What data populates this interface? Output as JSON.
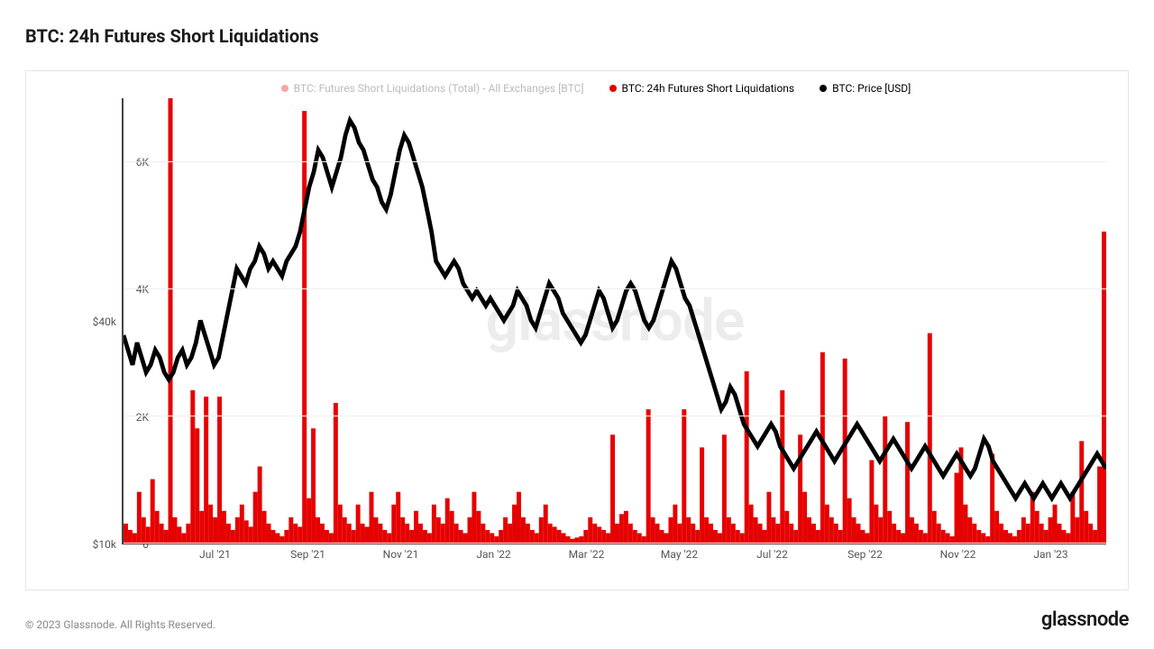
{
  "title": "BTC: 24h Futures Short Liquidations",
  "copyright": "© 2023 Glassnode. All Rights Reserved.",
  "brand": "glassnode",
  "watermark": "glassnode",
  "chart": {
    "type": "dual-axis-bar-line",
    "background_color": "#ffffff",
    "border_color": "#e5e5e5",
    "grid_color": "#eeeeee",
    "axis_color": "#444444",
    "text_color": "#555555",
    "title_fontsize": 20,
    "tick_fontsize": 12,
    "legend_fontsize": 12,
    "legend": [
      {
        "label": "BTC: Futures Short Liquidations (Total) - All Exchanges [BTC]",
        "color": "#e60000",
        "dim": true,
        "marker": "circle"
      },
      {
        "label": "BTC: 24h Futures Short Liquidations",
        "color": "#e60000",
        "dim": false,
        "marker": "circle"
      },
      {
        "label": "BTC: Price [USD]",
        "color": "#000000",
        "dim": false,
        "marker": "circle"
      }
    ],
    "x_labels": [
      "Jul '21",
      "Sep '21",
      "Nov '21",
      "Jan '22",
      "Mar '22",
      "May '22",
      "Jul '22",
      "Sep '22",
      "Nov '22",
      "Jan '23"
    ],
    "left_axis": {
      "label_prefix": "$",
      "label_suffix": "k",
      "min": 10,
      "max": 70,
      "ticks": [
        10,
        40
      ],
      "unit": "USD"
    },
    "right_axis": {
      "min": 0,
      "max": 7000,
      "ticks": [
        0,
        2000,
        4000,
        6000
      ],
      "tick_labels": [
        "0",
        "2K",
        "4K",
        "6K"
      ]
    },
    "series_price": {
      "color": "#000000",
      "line_width": 1.2,
      "data": [
        38,
        36,
        34,
        37,
        35,
        33,
        34,
        36,
        35,
        33,
        32,
        33,
        35,
        36,
        34,
        35,
        37,
        40,
        38,
        36,
        34,
        35,
        38,
        41,
        44,
        47,
        46,
        45,
        47,
        48,
        50,
        49,
        47,
        48,
        47,
        46,
        48,
        49,
        50,
        52,
        55,
        58,
        60,
        63,
        62,
        60,
        58,
        60,
        62,
        65,
        67,
        66,
        64,
        63,
        61,
        59,
        58,
        56,
        55,
        57,
        60,
        63,
        65,
        64,
        62,
        60,
        58,
        55,
        52,
        48,
        47,
        46,
        47,
        48,
        47,
        45,
        44,
        43,
        44,
        43,
        42,
        43,
        42,
        41,
        40,
        41,
        42,
        44,
        43,
        42,
        40,
        39,
        41,
        43,
        45,
        44,
        43,
        41,
        40,
        39,
        38,
        37,
        38,
        40,
        42,
        44,
        43,
        41,
        39,
        40,
        42,
        44,
        45,
        44,
        42,
        40,
        39,
        40,
        42,
        44,
        46,
        48,
        47,
        45,
        43,
        42,
        40,
        38,
        36,
        34,
        32,
        30,
        28,
        29,
        31,
        30,
        28,
        26,
        25,
        24,
        23,
        24,
        25,
        26,
        25,
        23,
        22,
        21,
        20,
        21,
        22,
        23,
        24,
        25,
        24,
        23,
        22,
        21,
        22,
        23,
        24,
        25,
        26,
        25,
        24,
        23,
        22,
        21,
        22,
        23,
        24,
        23,
        22,
        21,
        20,
        21,
        22,
        23,
        22,
        21,
        20,
        19,
        20,
        21,
        22,
        21,
        20,
        19,
        20,
        22,
        24,
        23,
        21,
        20,
        19,
        18,
        17,
        16,
        17,
        18,
        17,
        16,
        17,
        18,
        17,
        16,
        17,
        18,
        17,
        16,
        17,
        18,
        19,
        20,
        21,
        22,
        21,
        20
      ]
    },
    "series_bars": {
      "color": "#e60000",
      "bar_width": 1.0,
      "data": [
        300,
        200,
        150,
        800,
        400,
        250,
        1000,
        500,
        300,
        200,
        7200,
        400,
        250,
        150,
        300,
        2400,
        1800,
        500,
        2300,
        600,
        400,
        2300,
        500,
        300,
        200,
        400,
        600,
        350,
        250,
        800,
        1200,
        500,
        300,
        200,
        150,
        100,
        200,
        400,
        300,
        250,
        6800,
        700,
        1800,
        400,
        300,
        200,
        150,
        2200,
        600,
        400,
        300,
        200,
        600,
        300,
        250,
        800,
        400,
        300,
        200,
        150,
        600,
        800,
        400,
        300,
        200,
        500,
        300,
        200,
        150,
        600,
        400,
        300,
        700,
        500,
        300,
        200,
        150,
        400,
        800,
        500,
        300,
        200,
        150,
        100,
        200,
        400,
        300,
        600,
        800,
        400,
        300,
        200,
        150,
        400,
        600,
        300,
        250,
        200,
        150,
        100,
        60,
        80,
        100,
        200,
        400,
        300,
        250,
        200,
        150,
        1700,
        300,
        450,
        500,
        300,
        200,
        150,
        100,
        2100,
        400,
        300,
        200,
        150,
        400,
        600,
        300,
        2100,
        400,
        300,
        200,
        1500,
        400,
        300,
        200,
        150,
        1700,
        400,
        300,
        200,
        150,
        2700,
        600,
        400,
        300,
        200,
        800,
        400,
        300,
        2400,
        500,
        300,
        200,
        1700,
        800,
        400,
        300,
        200,
        3000,
        600,
        400,
        300,
        200,
        2900,
        700,
        400,
        300,
        200,
        150,
        1300,
        600,
        400,
        2000,
        500,
        300,
        200,
        150,
        1900,
        400,
        300,
        200,
        150,
        3300,
        500,
        300,
        200,
        150,
        100,
        1100,
        1500,
        600,
        400,
        300,
        200,
        150,
        100,
        1400,
        500,
        300,
        200,
        150,
        100,
        200,
        400,
        300,
        800,
        500,
        300,
        200,
        400,
        600,
        300,
        200,
        150,
        800,
        400,
        1600,
        500,
        300,
        200,
        1200,
        4900
      ]
    }
  }
}
